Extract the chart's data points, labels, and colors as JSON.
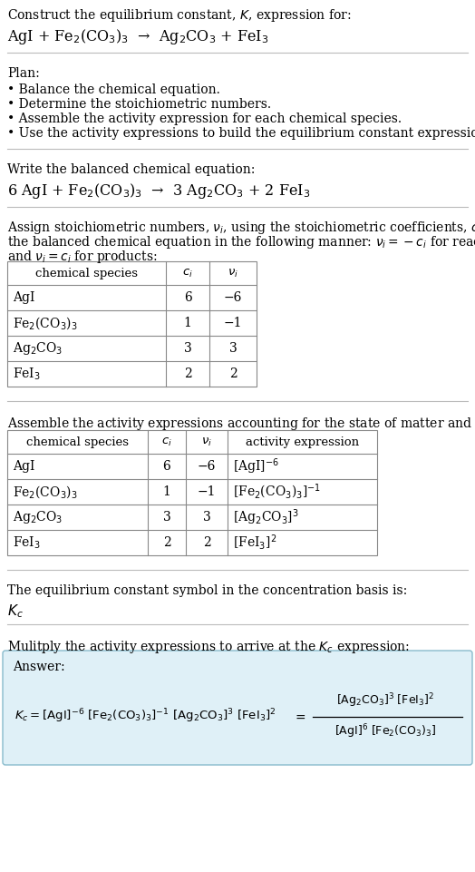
{
  "title_line1": "Construct the equilibrium constant, $K$, expression for:",
  "title_line2": "AgI + Fe$_2$(CO$_3$)$_3$  →  Ag$_2$CO$_3$ + FeI$_3$",
  "plan_header": "Plan:",
  "plan_items": [
    "• Balance the chemical equation.",
    "• Determine the stoichiometric numbers.",
    "• Assemble the activity expression for each chemical species.",
    "• Use the activity expressions to build the equilibrium constant expression."
  ],
  "balanced_header": "Write the balanced chemical equation:",
  "balanced_eq": "6 AgI + Fe$_2$(CO$_3$)$_3$  →  3 Ag$_2$CO$_3$ + 2 FeI$_3$",
  "stoich_header1": "Assign stoichiometric numbers, $\\nu_i$, using the stoichiometric coefficients, $c_i$, from",
  "stoich_header2": "the balanced chemical equation in the following manner: $\\nu_i = -c_i$ for reactants",
  "stoich_header3": "and $\\nu_i = c_i$ for products:",
  "table1_headers": [
    "chemical species",
    "$c_i$",
    "$\\nu_i$"
  ],
  "table1_rows": [
    [
      "AgI",
      "6",
      "−6"
    ],
    [
      "Fe$_2$(CO$_3$)$_3$",
      "1",
      "−1"
    ],
    [
      "Ag$_2$CO$_3$",
      "3",
      "3"
    ],
    [
      "FeI$_3$",
      "2",
      "2"
    ]
  ],
  "assemble_header": "Assemble the activity expressions accounting for the state of matter and $\\nu_i$:",
  "table2_headers": [
    "chemical species",
    "$c_i$",
    "$\\nu_i$",
    "activity expression"
  ],
  "table2_rows": [
    [
      "AgI",
      "6",
      "−6",
      "[AgI]$^{-6}$"
    ],
    [
      "Fe$_2$(CO$_3$)$_3$",
      "1",
      "−1",
      "[Fe$_2$(CO$_3$)$_3$]$^{-1}$"
    ],
    [
      "Ag$_2$CO$_3$",
      "3",
      "3",
      "[Ag$_2$CO$_3$]$^3$"
    ],
    [
      "FeI$_3$",
      "2",
      "2",
      "[FeI$_3$]$^2$"
    ]
  ],
  "kc_header": "The equilibrium constant symbol in the concentration basis is:",
  "kc_symbol": "$K_c$",
  "multiply_header": "Mulitply the activity expressions to arrive at the $K_c$ expression:",
  "answer_label": "Answer:",
  "bg_color": "#ffffff",
  "answer_box_color": "#dff0f7",
  "answer_box_border": "#88bbcc",
  "text_color": "#000000",
  "font_size": 10.0
}
